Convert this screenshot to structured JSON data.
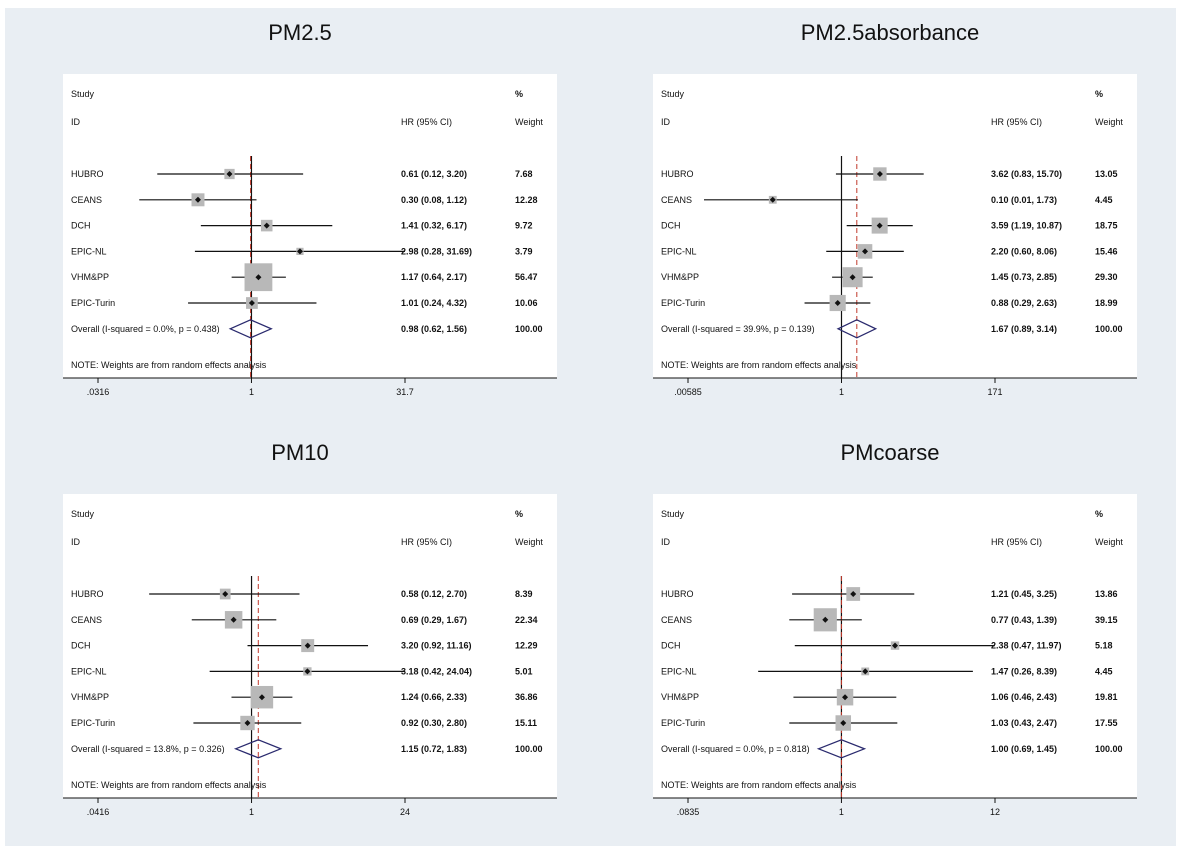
{
  "chart_data": [
    {
      "type": "forest",
      "title": "PM2.5",
      "header": {
        "study": "Study",
        "id": "ID",
        "hr": "HR (95% CI)",
        "pct": "%",
        "weight": "Weight"
      },
      "axis": {
        "log_scale": true,
        "ticks": [
          ".0316",
          "1",
          "31.7"
        ],
        "tick_values": [
          0.0316,
          1,
          31.7
        ],
        "xlim": [
          0.0316,
          31.7
        ]
      },
      "overall_ref_line": 0.98,
      "studies": [
        {
          "name": "HUBRO",
          "hr": 0.61,
          "lo": 0.12,
          "hi": 3.2,
          "label": "0.61 (0.12, 3.20)",
          "weight": "7.68"
        },
        {
          "name": "CEANS",
          "hr": 0.3,
          "lo": 0.08,
          "hi": 1.12,
          "label": "0.30 (0.08, 1.12)",
          "weight": "12.28"
        },
        {
          "name": "DCH",
          "hr": 1.41,
          "lo": 0.32,
          "hi": 6.17,
          "label": "1.41 (0.32, 6.17)",
          "weight": "9.72"
        },
        {
          "name": "EPIC-NL",
          "hr": 2.98,
          "lo": 0.28,
          "hi": 31.69,
          "label": "2.98 (0.28, 31.69)",
          "weight": "3.79"
        },
        {
          "name": "VHM&PP",
          "hr": 1.17,
          "lo": 0.64,
          "hi": 2.17,
          "label": "1.17 (0.64, 2.17)",
          "weight": "56.47"
        },
        {
          "name": "EPIC-Turin",
          "hr": 1.01,
          "lo": 0.24,
          "hi": 4.32,
          "label": "1.01 (0.24, 4.32)",
          "weight": "10.06"
        }
      ],
      "overall": {
        "name": "Overall  (I-squared = 0.0%, p = 0.438)",
        "hr": 0.98,
        "lo": 0.62,
        "hi": 1.56,
        "label": "0.98 (0.62, 1.56)",
        "weight": "100.00"
      },
      "note": "NOTE: Weights are from random effects analysis"
    },
    {
      "type": "forest",
      "title": "PM2.5absorbance",
      "header": {
        "study": "Study",
        "id": "ID",
        "hr": "HR (95% CI)",
        "pct": "%",
        "weight": "Weight"
      },
      "axis": {
        "log_scale": true,
        "ticks": [
          ".00585",
          "1",
          "171"
        ],
        "tick_values": [
          0.00585,
          1,
          171
        ],
        "xlim": [
          0.00585,
          171
        ]
      },
      "overall_ref_line": 1.67,
      "studies": [
        {
          "name": "HUBRO",
          "hr": 3.62,
          "lo": 0.83,
          "hi": 15.7,
          "label": "3.62 (0.83, 15.70)",
          "weight": "13.05"
        },
        {
          "name": "CEANS",
          "hr": 0.1,
          "lo": 0.01,
          "hi": 1.73,
          "label": "0.10 (0.01, 1.73)",
          "weight": "4.45"
        },
        {
          "name": "DCH",
          "hr": 3.59,
          "lo": 1.19,
          "hi": 10.87,
          "label": "3.59 (1.19, 10.87)",
          "weight": "18.75"
        },
        {
          "name": "EPIC-NL",
          "hr": 2.2,
          "lo": 0.6,
          "hi": 8.06,
          "label": "2.20 (0.60, 8.06)",
          "weight": "15.46"
        },
        {
          "name": "VHM&PP",
          "hr": 1.45,
          "lo": 0.73,
          "hi": 2.85,
          "label": "1.45 (0.73, 2.85)",
          "weight": "29.30"
        },
        {
          "name": "EPIC-Turin",
          "hr": 0.88,
          "lo": 0.29,
          "hi": 2.63,
          "label": "0.88 (0.29, 2.63)",
          "weight": "18.99"
        }
      ],
      "overall": {
        "name": "Overall  (I-squared = 39.9%, p = 0.139)",
        "hr": 1.67,
        "lo": 0.89,
        "hi": 3.14,
        "label": "1.67 (0.89, 3.14)",
        "weight": "100.00"
      },
      "note": "NOTE: Weights are from random effects analysis"
    },
    {
      "type": "forest",
      "title": "PM10",
      "header": {
        "study": "Study",
        "id": "ID",
        "hr": "HR (95% CI)",
        "pct": "%",
        "weight": "Weight"
      },
      "axis": {
        "log_scale": true,
        "ticks": [
          ".0416",
          "1",
          "24"
        ],
        "tick_values": [
          0.0416,
          1,
          24
        ],
        "xlim": [
          0.0416,
          24
        ]
      },
      "overall_ref_line": 1.15,
      "studies": [
        {
          "name": "HUBRO",
          "hr": 0.58,
          "lo": 0.12,
          "hi": 2.7,
          "label": "0.58 (0.12, 2.70)",
          "weight": "8.39"
        },
        {
          "name": "CEANS",
          "hr": 0.69,
          "lo": 0.29,
          "hi": 1.67,
          "label": "0.69 (0.29, 1.67)",
          "weight": "22.34"
        },
        {
          "name": "DCH",
          "hr": 3.2,
          "lo": 0.92,
          "hi": 11.16,
          "label": "3.20 (0.92, 11.16)",
          "weight": "12.29"
        },
        {
          "name": "EPIC-NL",
          "hr": 3.18,
          "lo": 0.42,
          "hi": 24.04,
          "label": "3.18 (0.42, 24.04)",
          "weight": "5.01"
        },
        {
          "name": "VHM&PP",
          "hr": 1.24,
          "lo": 0.66,
          "hi": 2.33,
          "label": "1.24 (0.66, 2.33)",
          "weight": "36.86"
        },
        {
          "name": "EPIC-Turin",
          "hr": 0.92,
          "lo": 0.3,
          "hi": 2.8,
          "label": "0.92 (0.30, 2.80)",
          "weight": "15.11"
        }
      ],
      "overall": {
        "name": "Overall  (I-squared = 13.8%, p = 0.326)",
        "hr": 1.15,
        "lo": 0.72,
        "hi": 1.83,
        "label": "1.15 (0.72, 1.83)",
        "weight": "100.00"
      },
      "note": "NOTE: Weights are from random effects analysis"
    },
    {
      "type": "forest",
      "title": "PMcoarse",
      "header": {
        "study": "Study",
        "id": "ID",
        "hr": "HR (95% CI)",
        "pct": "%",
        "weight": "Weight"
      },
      "axis": {
        "log_scale": true,
        "ticks": [
          ".0835",
          "1",
          "12"
        ],
        "tick_values": [
          0.0835,
          1,
          12
        ],
        "xlim": [
          0.0835,
          12
        ]
      },
      "overall_ref_line": 1.0,
      "studies": [
        {
          "name": "HUBRO",
          "hr": 1.21,
          "lo": 0.45,
          "hi": 3.25,
          "label": "1.21 (0.45, 3.25)",
          "weight": "13.86"
        },
        {
          "name": "CEANS",
          "hr": 0.77,
          "lo": 0.43,
          "hi": 1.39,
          "label": "0.77 (0.43, 1.39)",
          "weight": "39.15"
        },
        {
          "name": "DCH",
          "hr": 2.38,
          "lo": 0.47,
          "hi": 11.97,
          "label": "2.38 (0.47, 11.97)",
          "weight": "5.18"
        },
        {
          "name": "EPIC-NL",
          "hr": 1.47,
          "lo": 0.26,
          "hi": 8.39,
          "label": "1.47 (0.26, 8.39)",
          "weight": "4.45"
        },
        {
          "name": "VHM&PP",
          "hr": 1.06,
          "lo": 0.46,
          "hi": 2.43,
          "label": "1.06 (0.46, 2.43)",
          "weight": "19.81"
        },
        {
          "name": "EPIC-Turin",
          "hr": 1.03,
          "lo": 0.43,
          "hi": 2.47,
          "label": "1.03 (0.43, 2.47)",
          "weight": "17.55"
        }
      ],
      "overall": {
        "name": "Overall  (I-squared = 0.0%, p = 0.818)",
        "hr": 1.0,
        "lo": 0.69,
        "hi": 1.45,
        "label": "1.00 (0.69, 1.45)",
        "weight": "100.00"
      },
      "note": "NOTE: Weights are from random effects analysis"
    }
  ],
  "colors": {
    "background": "#e9eef3",
    "plot_area": "#ffffff",
    "weight_box": "#b8b8b8",
    "point": "#111111",
    "line": "#111111",
    "overall_diamond": "#2a2a6e",
    "overall_ref_line": "#c0392b"
  }
}
